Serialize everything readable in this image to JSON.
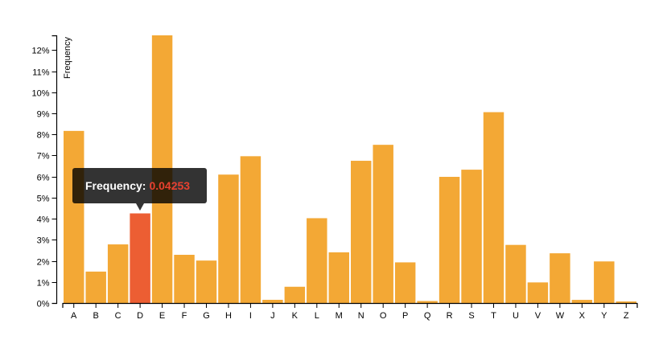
{
  "chart_data": {
    "type": "bar",
    "categories": [
      "A",
      "B",
      "C",
      "D",
      "E",
      "F",
      "G",
      "H",
      "I",
      "J",
      "K",
      "L",
      "M",
      "N",
      "O",
      "P",
      "Q",
      "R",
      "S",
      "T",
      "U",
      "V",
      "W",
      "X",
      "Y",
      "Z"
    ],
    "values": [
      0.08167,
      0.01492,
      0.02782,
      0.04253,
      0.12702,
      0.02288,
      0.02015,
      0.06094,
      0.06966,
      0.00153,
      0.00772,
      0.04025,
      0.02406,
      0.06749,
      0.07507,
      0.01929,
      0.00095,
      0.05987,
      0.06327,
      0.09056,
      0.02758,
      0.00978,
      0.0236,
      0.0015,
      0.01974,
      0.00074
    ],
    "title": "",
    "xlabel": "",
    "ylabel": "Frequency",
    "ylim": [
      0,
      0.127
    ],
    "yticks": [
      0,
      0.01,
      0.02,
      0.03,
      0.04,
      0.05,
      0.06,
      0.07,
      0.08,
      0.09,
      0.1,
      0.11,
      0.12
    ],
    "ytick_labels": [
      "0%",
      "1%",
      "2%",
      "3%",
      "4%",
      "5%",
      "6%",
      "7%",
      "8%",
      "9%",
      "10%",
      "11%",
      "12%"
    ],
    "highlighted_category": "D",
    "colors": {
      "bar": "#f3a835",
      "highlight": "#ec5e33"
    }
  },
  "tooltip": {
    "label": "Frequency:",
    "value": "0.04253",
    "value_color": "#e8412f"
  }
}
